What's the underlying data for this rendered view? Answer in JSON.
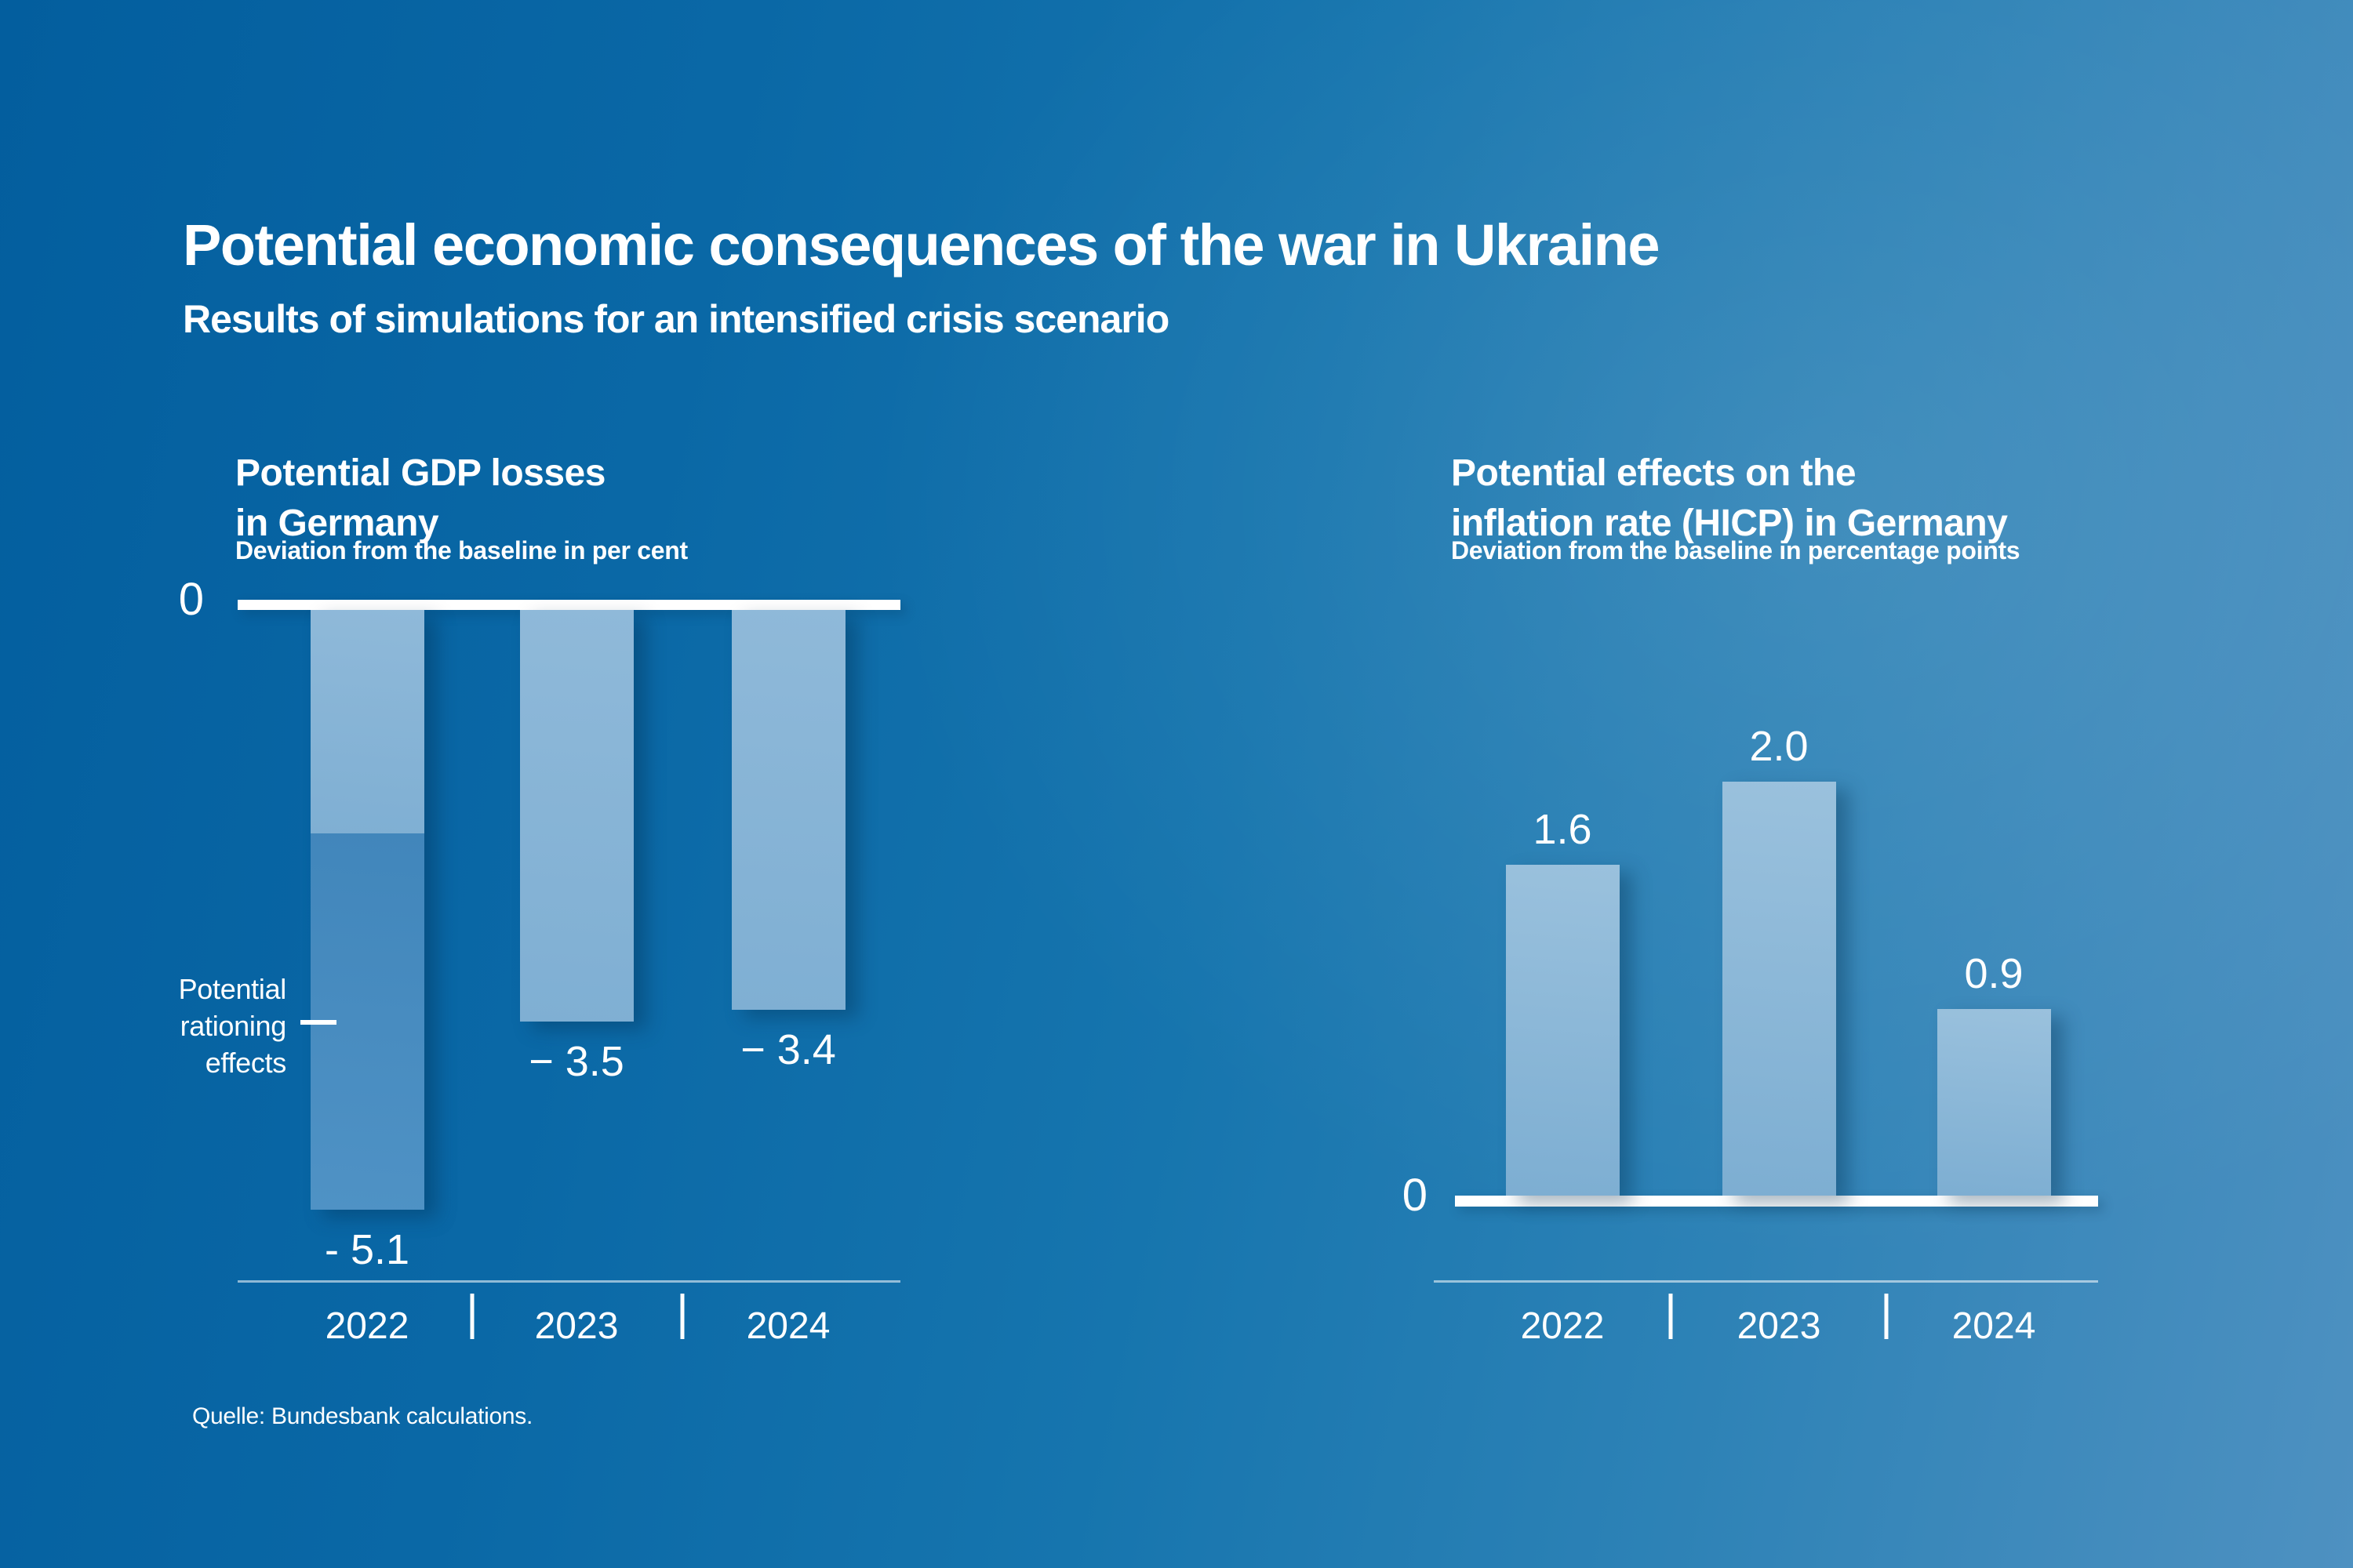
{
  "page": {
    "title": "Potential economic consequences of the war in Ukraine",
    "subtitle": "Results of simulations for an intensified crisis scenario",
    "source": "Quelle: Bundesbank calculations."
  },
  "colors": {
    "background_dark": "#035e9e",
    "background_light": "#4e91c1",
    "bar_light": "#8db8d8",
    "bar_dark": "#4689bd",
    "text": "#ffffff"
  },
  "chart_data": [
    {
      "type": "bar",
      "orientation": "down",
      "title": "Potential GDP losses in Germany",
      "title_lines": [
        "Potential GDP losses",
        "in Germany"
      ],
      "subtitle": "Deviation from the baseline in per cent",
      "categories": [
        "2022",
        "2023",
        "2024"
      ],
      "values": [
        -5.1,
        -3.5,
        -3.4
      ],
      "value_labels": [
        "- 5.1",
        "− 3.5",
        "− 3.4"
      ],
      "baseline_label": "0",
      "ylim": [
        -5.5,
        0
      ],
      "grid": "off",
      "legend_position": "none",
      "split": {
        "category": "2022",
        "boundary": -1.9,
        "note": "upper light segment = direct effect (approx. -1.9), lower dark segment = additional rationing effects down to -5.1"
      },
      "annotation_lines": [
        "Potential",
        "rationing",
        "effects"
      ],
      "annotation": "Potential rationing effects"
    },
    {
      "type": "bar",
      "orientation": "up",
      "title": "Potential effects on the inflation rate (HICP) in Germany",
      "title_lines": [
        "Potential effects on the",
        "inflation rate (HICP) in Germany"
      ],
      "subtitle": "Deviation from the baseline in percentage points",
      "categories": [
        "2022",
        "2023",
        "2024"
      ],
      "values": [
        1.6,
        2.0,
        0.9
      ],
      "value_labels": [
        "1.6",
        "2.0",
        "0.9"
      ],
      "baseline_label": "0",
      "ylim": [
        0,
        2.2
      ],
      "grid": "off",
      "legend_position": "none"
    }
  ]
}
